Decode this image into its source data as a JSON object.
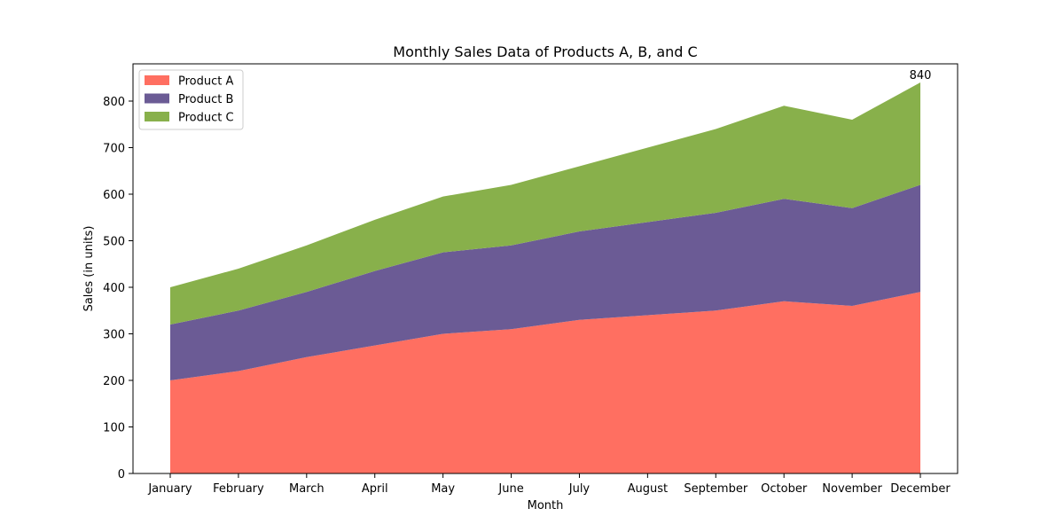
{
  "chart_data": {
    "type": "area",
    "title": "Monthly Sales Data of Products A, B, and C",
    "xlabel": "Month",
    "ylabel": "Sales (in units)",
    "categories": [
      "January",
      "February",
      "March",
      "April",
      "May",
      "June",
      "July",
      "August",
      "September",
      "October",
      "November",
      "December"
    ],
    "ylim": [
      0,
      880
    ],
    "yticks": [
      0,
      100,
      200,
      300,
      400,
      500,
      600,
      700,
      800
    ],
    "stacked": true,
    "grid": false,
    "legend_position": "upper-left",
    "series": [
      {
        "name": "Product A",
        "color": "#ff6f61",
        "values": [
          200,
          220,
          250,
          275,
          300,
          310,
          330,
          340,
          350,
          370,
          360,
          390
        ]
      },
      {
        "name": "Product B",
        "color": "#6b5b95",
        "values": [
          120,
          130,
          140,
          160,
          175,
          180,
          190,
          200,
          210,
          220,
          210,
          230
        ]
      },
      {
        "name": "Product C",
        "color": "#88b04b",
        "values": [
          80,
          90,
          100,
          110,
          120,
          130,
          140,
          160,
          180,
          200,
          190,
          220
        ]
      }
    ],
    "annotations": [
      {
        "category": "December",
        "value": 840,
        "text": "840"
      }
    ]
  }
}
